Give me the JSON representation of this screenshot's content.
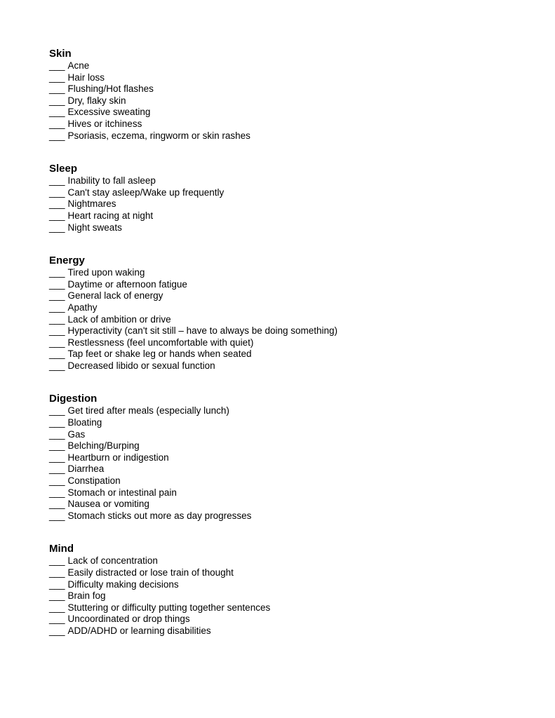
{
  "blank_marker": "___",
  "sections": [
    {
      "title": "Skin",
      "items": [
        "Acne",
        "Hair loss",
        "Flushing/Hot flashes",
        "Dry, flaky skin",
        "Excessive sweating",
        "Hives or itchiness",
        "Psoriasis, eczema, ringworm or skin rashes"
      ]
    },
    {
      "title": "Sleep",
      "items": [
        "Inability to fall asleep",
        "Can't stay asleep/Wake up frequently",
        "Nightmares",
        "Heart racing at night",
        "Night sweats"
      ]
    },
    {
      "title": "Energy",
      "items": [
        "Tired upon waking",
        "Daytime or afternoon fatigue",
        "General lack of energy",
        "Apathy",
        "Lack of ambition or drive",
        "Hyperactivity (can't sit still – have to always be doing something)",
        "Restlessness (feel uncomfortable with quiet)",
        "Tap feet or shake leg or hands when seated",
        "Decreased libido or sexual function"
      ]
    },
    {
      "title": "Digestion",
      "items": [
        "Get tired after meals (especially lunch)",
        "Bloating",
        "Gas",
        "Belching/Burping",
        "Heartburn or indigestion",
        "Diarrhea",
        "Constipation",
        "Stomach or intestinal pain",
        "Nausea or vomiting",
        "Stomach sticks out more as day progresses"
      ]
    },
    {
      "title": "Mind",
      "items": [
        "Lack of concentration",
        "Easily distracted or lose train of thought",
        "Difficulty making decisions",
        "Brain fog",
        "Stuttering or difficulty putting together sentences",
        "Uncoordinated or drop things",
        "ADD/ADHD or learning disabilities"
      ]
    }
  ]
}
